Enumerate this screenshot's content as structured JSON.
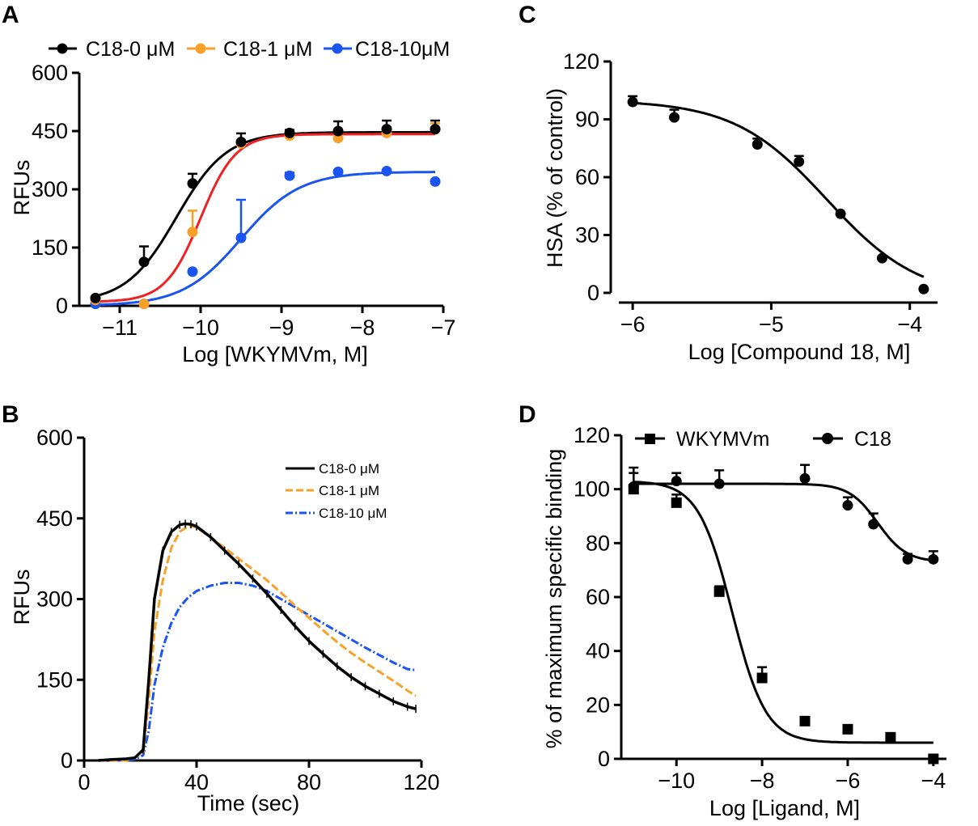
{
  "figure": {
    "panel_letters": [
      "A",
      "B",
      "C",
      "D"
    ]
  },
  "colors": {
    "black": "#000000",
    "orange": "#f7a12a",
    "red": "#ee2222",
    "blue": "#1a55f2"
  },
  "chart_data": [
    {
      "panel": "A",
      "type": "scatter",
      "fit": "sigmoid",
      "xlabel": "Log [WKYMVm, M]",
      "ylabel": "RFUs",
      "xlim": [
        -11.5,
        -7
      ],
      "ylim": [
        0,
        600
      ],
      "xticks": [
        -11,
        -10,
        -9,
        -8,
        -7
      ],
      "yticks": [
        0,
        150,
        300,
        450,
        600
      ],
      "x": [
        -11.3,
        -10.7,
        -10.1,
        -9.5,
        -8.9,
        -8.3,
        -7.7,
        -7.1
      ],
      "legend": {
        "placement": "top"
      },
      "series": [
        {
          "name": "C18-0 μM",
          "color_key": "black",
          "fit_color_key": "black",
          "values": [
            20,
            113,
            315,
            422,
            445,
            450,
            455,
            455
          ],
          "errors": [
            0,
            40,
            25,
            22,
            8,
            25,
            22,
            22
          ],
          "fit": {
            "bottom": 8,
            "top": 447,
            "logec50": -10.3,
            "hill": 1.4
          }
        },
        {
          "name": "C18-1 μM",
          "color_key": "orange",
          "fit_color_key": "red",
          "values": [
            15,
            5,
            190,
            418,
            438,
            432,
            445,
            455
          ],
          "errors": [
            0,
            0,
            55,
            0,
            0,
            0,
            0,
            15
          ],
          "fit": {
            "bottom": 10,
            "top": 442,
            "logec50": -10.0,
            "hill": 2.0
          }
        },
        {
          "name": "C18-10μM",
          "color_key": "blue",
          "fit_color_key": "blue",
          "values": [
            5,
            5,
            88,
            175,
            335,
            345,
            347,
            320
          ],
          "errors": [
            0,
            0,
            0,
            98,
            8,
            0,
            0,
            0
          ],
          "fit": {
            "bottom": 0,
            "top": 345,
            "logec50": -9.5,
            "hill": 1.2
          }
        }
      ]
    },
    {
      "panel": "B",
      "type": "line",
      "xlabel": "Time (sec)",
      "ylabel": "RFUs",
      "xlim": [
        0,
        120
      ],
      "ylim": [
        0,
        600
      ],
      "xticks": [
        0,
        40,
        80,
        120
      ],
      "yticks": [
        0,
        150,
        300,
        450,
        600
      ],
      "legend": {
        "placement": "top-right"
      },
      "series": [
        {
          "name": "C18-0 μM",
          "color_key": "black",
          "dash": "solid",
          "x": [
            5,
            10,
            15,
            18,
            21,
            23,
            25,
            28,
            31,
            34,
            36,
            38,
            40,
            45,
            50,
            55,
            60,
            65,
            70,
            75,
            80,
            85,
            90,
            95,
            100,
            105,
            110,
            115,
            118
          ],
          "y": [
            0,
            2,
            3,
            5,
            20,
            150,
            300,
            390,
            425,
            438,
            440,
            439,
            435,
            415,
            390,
            365,
            338,
            310,
            280,
            250,
            222,
            198,
            175,
            155,
            138,
            124,
            110,
            100,
            96
          ]
        },
        {
          "name": "C18-1 μM",
          "color_key": "orange",
          "dash": "dashed",
          "x": [
            5,
            10,
            15,
            18,
            21,
            23,
            25,
            28,
            31,
            34,
            36,
            38,
            40,
            45,
            50,
            55,
            60,
            65,
            70,
            75,
            80,
            85,
            90,
            95,
            100,
            105,
            110,
            115,
            118
          ],
          "y": [
            0,
            0,
            0,
            5,
            15,
            110,
            240,
            335,
            395,
            425,
            432,
            436,
            433,
            415,
            395,
            375,
            355,
            335,
            312,
            288,
            265,
            242,
            220,
            200,
            182,
            165,
            148,
            130,
            120
          ]
        },
        {
          "name": "C18-10 μM",
          "color_key": "blue",
          "dash": "dashdot",
          "x": [
            5,
            10,
            15,
            18,
            21,
            23,
            25,
            28,
            31,
            34,
            37,
            40,
            45,
            50,
            55,
            60,
            65,
            70,
            75,
            80,
            85,
            90,
            95,
            100,
            105,
            110,
            115,
            118
          ],
          "y": [
            0,
            0,
            0,
            2,
            10,
            55,
            140,
            210,
            255,
            285,
            303,
            315,
            325,
            330,
            330,
            325,
            315,
            300,
            285,
            270,
            255,
            240,
            225,
            210,
            196,
            182,
            170,
            168
          ]
        }
      ]
    },
    {
      "panel": "C",
      "type": "scatter",
      "fit": "sigmoid",
      "xlabel": "Log [Compound 18, M]",
      "ylabel": "HSA (% of control)",
      "xlim": [
        -6.1,
        -3.8
      ],
      "ylim": [
        0,
        120
      ],
      "xticks": [
        -6,
        -5,
        -4
      ],
      "yticks": [
        0,
        30,
        60,
        90,
        120
      ],
      "series": [
        {
          "name": "",
          "color_key": "black",
          "x": [
            -6,
            -5.7,
            -5.1,
            -4.8,
            -4.5,
            -4.2,
            -3.9
          ],
          "values": [
            99,
            91,
            77,
            68,
            41,
            18,
            2
          ],
          "errors": [
            3,
            4,
            3,
            3,
            0,
            0,
            0
          ],
          "fit": {
            "bottom": -3,
            "top": 100,
            "logec50": -4.6,
            "hill": -1.3
          }
        }
      ]
    },
    {
      "panel": "D",
      "type": "scatter",
      "fit": "sigmoid",
      "xlabel": "Log [Ligand, M]",
      "ylabel": "% of maximum specific binding",
      "xlim": [
        -11.1,
        -3.6
      ],
      "ylim": [
        0,
        120
      ],
      "xticks": [
        -10,
        -8,
        -6,
        -4
      ],
      "yticks": [
        0,
        20,
        40,
        60,
        80,
        100,
        120
      ],
      "legend": {
        "placement": "top"
      },
      "series": [
        {
          "name": "WKYMVm",
          "color_key": "black",
          "marker": "square",
          "x": [
            -11,
            -10,
            -9,
            -8,
            -7,
            -6,
            -5,
            -4
          ],
          "values": [
            100,
            95,
            62,
            30,
            14,
            11,
            8,
            0
          ],
          "errors": [
            8,
            3,
            2,
            4,
            0,
            0,
            0,
            0
          ],
          "fit": {
            "bottom": 6,
            "top": 103,
            "logec50": -8.7,
            "hill": -1.1
          }
        },
        {
          "name": "C18",
          "color_key": "black",
          "marker": "circle",
          "x": [
            -11,
            -10,
            -9,
            -7,
            -6,
            -5.4,
            -4.6,
            -4
          ],
          "values": [
            101,
            103,
            102,
            104,
            94,
            87,
            74,
            74
          ],
          "errors": [
            5,
            3,
            5,
            5,
            3,
            4,
            2,
            3
          ],
          "fit": {
            "bottom": 73,
            "top": 102,
            "logec50": -5.3,
            "hill": -1.3
          }
        }
      ]
    }
  ]
}
